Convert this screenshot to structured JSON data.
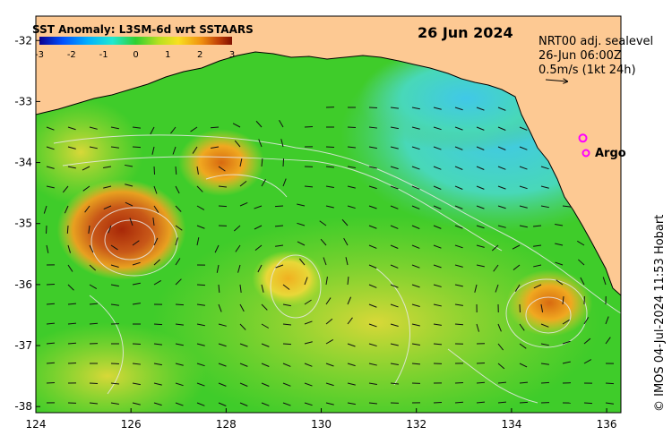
{
  "map": {
    "title": "SST Anomaly: L3SM-6d wrt SSTAARS",
    "date": "26 Jun 2024",
    "info_line1": "NRT00 adj. sealevel",
    "info_line2": "26-Jun 06:00Z",
    "info_line3": "0.5m/s (1kt 24h)",
    "argo_label": "Argo",
    "credit": "© IMOS 04-Jul-2024 11:53 Hobart",
    "colorbar": {
      "ticks": [
        "-3",
        "-2",
        "-1",
        "0",
        "1",
        "2",
        "3"
      ],
      "range": [
        -3,
        3
      ]
    },
    "x_axis": {
      "range": [
        124,
        136.3
      ],
      "ticks": [
        "124",
        "126",
        "128",
        "130",
        "132",
        "134",
        "136"
      ]
    },
    "y_axis": {
      "range": [
        -38.1,
        -31.6
      ],
      "ticks": [
        "-32",
        "-33",
        "-34",
        "-35",
        "-36",
        "-37",
        "-38"
      ]
    },
    "argo_float": {
      "lon": 135.5,
      "lat": -33.6
    },
    "colors": {
      "land": "#fdc993",
      "ocean_base": "#3fcc2a",
      "argo_marker": "#ff00ff"
    },
    "warm_eddies": [
      {
        "lon": 125.8,
        "lat": -35.1,
        "anomaly": 3.0
      },
      {
        "lon": 127.9,
        "lat": -34.0,
        "anomaly": 2.4
      },
      {
        "lon": 129.3,
        "lat": -35.9,
        "anomaly": 1.8
      },
      {
        "lon": 134.8,
        "lat": -36.3,
        "anomaly": 2.2
      }
    ]
  }
}
